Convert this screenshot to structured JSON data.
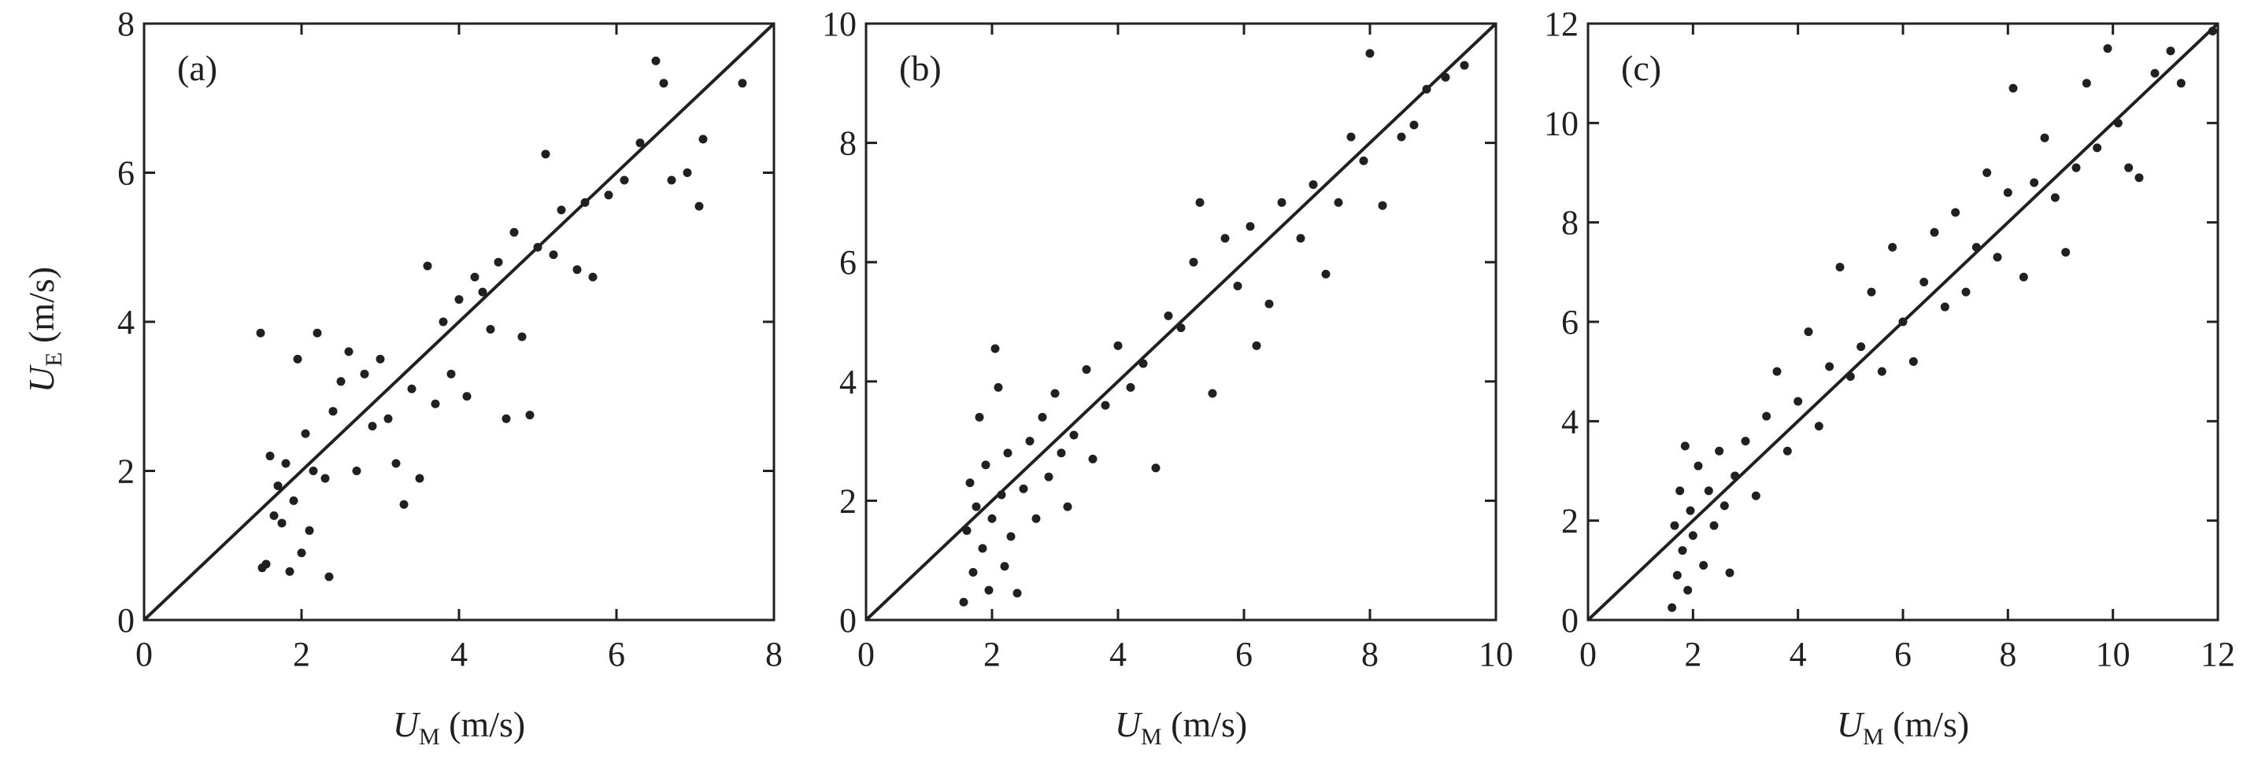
{
  "chart_data": [
    {
      "type": "scatter",
      "panel_label": "(a)",
      "xlabel": {
        "main": "U",
        "sub": "M",
        "unit": " (m/s)"
      },
      "ylabel": {
        "main": "U",
        "sub": "E",
        "unit": " (m/s)"
      },
      "xlim": [
        0,
        8
      ],
      "ylim": [
        0,
        8
      ],
      "xticks": [
        0,
        2,
        4,
        6,
        8
      ],
      "yticks": [
        0,
        2,
        4,
        6,
        8
      ],
      "reference_line": "y = x",
      "grid": false,
      "points": [
        [
          1.48,
          3.85
        ],
        [
          1.5,
          0.7
        ],
        [
          1.55,
          0.75
        ],
        [
          1.6,
          2.2
        ],
        [
          1.65,
          1.4
        ],
        [
          1.7,
          1.8
        ],
        [
          1.75,
          1.3
        ],
        [
          1.8,
          2.1
        ],
        [
          1.85,
          0.65
        ],
        [
          1.9,
          1.6
        ],
        [
          1.95,
          3.5
        ],
        [
          2.0,
          0.9
        ],
        [
          2.05,
          2.5
        ],
        [
          2.1,
          1.2
        ],
        [
          2.15,
          2.0
        ],
        [
          2.2,
          3.85
        ],
        [
          2.3,
          1.9
        ],
        [
          2.35,
          0.58
        ],
        [
          2.4,
          2.8
        ],
        [
          2.5,
          3.2
        ],
        [
          2.6,
          3.6
        ],
        [
          2.7,
          2.0
        ],
        [
          2.8,
          3.3
        ],
        [
          2.9,
          2.6
        ],
        [
          3.0,
          3.5
        ],
        [
          3.1,
          2.7
        ],
        [
          3.2,
          2.1
        ],
        [
          3.3,
          1.55
        ],
        [
          3.4,
          3.1
        ],
        [
          3.5,
          1.9
        ],
        [
          3.6,
          4.75
        ],
        [
          3.7,
          2.9
        ],
        [
          3.8,
          4.0
        ],
        [
          3.9,
          3.3
        ],
        [
          4.0,
          4.3
        ],
        [
          4.1,
          3.0
        ],
        [
          4.2,
          4.6
        ],
        [
          4.3,
          4.4
        ],
        [
          4.4,
          3.9
        ],
        [
          4.5,
          4.8
        ],
        [
          4.6,
          2.7
        ],
        [
          4.7,
          5.2
        ],
        [
          4.8,
          3.8
        ],
        [
          4.9,
          2.75
        ],
        [
          5.0,
          5.0
        ],
        [
          5.1,
          6.25
        ],
        [
          5.2,
          4.9
        ],
        [
          5.3,
          5.5
        ],
        [
          5.5,
          4.7
        ],
        [
          5.6,
          5.6
        ],
        [
          5.7,
          4.6
        ],
        [
          5.9,
          5.7
        ],
        [
          6.1,
          5.9
        ],
        [
          6.3,
          6.4
        ],
        [
          6.5,
          7.5
        ],
        [
          6.6,
          7.2
        ],
        [
          6.7,
          5.9
        ],
        [
          6.9,
          6.0
        ],
        [
          7.05,
          5.55
        ],
        [
          7.1,
          6.45
        ],
        [
          7.6,
          7.2
        ]
      ]
    },
    {
      "type": "scatter",
      "panel_label": "(b)",
      "xlabel": {
        "main": "U",
        "sub": "M",
        "unit": " (m/s)"
      },
      "ylabel": {
        "main": "",
        "sub": "",
        "unit": ""
      },
      "xlim": [
        0,
        10
      ],
      "ylim": [
        0,
        10
      ],
      "xticks": [
        0,
        2,
        4,
        6,
        8,
        10
      ],
      "yticks": [
        0,
        2,
        4,
        6,
        8,
        10
      ],
      "reference_line": "y = x",
      "grid": false,
      "points": [
        [
          1.55,
          0.3
        ],
        [
          1.6,
          1.5
        ],
        [
          1.65,
          2.3
        ],
        [
          1.7,
          0.8
        ],
        [
          1.75,
          1.9
        ],
        [
          1.8,
          3.4
        ],
        [
          1.85,
          1.2
        ],
        [
          1.9,
          2.6
        ],
        [
          1.95,
          0.5
        ],
        [
          2.0,
          1.7
        ],
        [
          2.05,
          4.55
        ],
        [
          2.1,
          3.9
        ],
        [
          2.15,
          2.1
        ],
        [
          2.2,
          0.9
        ],
        [
          2.25,
          2.8
        ],
        [
          2.3,
          1.4
        ],
        [
          2.4,
          0.45
        ],
        [
          2.5,
          2.2
        ],
        [
          2.6,
          3.0
        ],
        [
          2.7,
          1.7
        ],
        [
          2.8,
          3.4
        ],
        [
          2.9,
          2.4
        ],
        [
          3.0,
          3.8
        ],
        [
          3.1,
          2.8
        ],
        [
          3.2,
          1.9
        ],
        [
          3.3,
          3.1
        ],
        [
          3.5,
          4.2
        ],
        [
          3.6,
          2.7
        ],
        [
          3.8,
          3.6
        ],
        [
          4.0,
          4.6
        ],
        [
          4.2,
          3.9
        ],
        [
          4.4,
          4.3
        ],
        [
          4.6,
          2.55
        ],
        [
          4.8,
          5.1
        ],
        [
          5.0,
          4.9
        ],
        [
          5.2,
          6.0
        ],
        [
          5.3,
          7.0
        ],
        [
          5.5,
          3.8
        ],
        [
          5.7,
          6.4
        ],
        [
          5.9,
          5.6
        ],
        [
          6.1,
          6.6
        ],
        [
          6.2,
          4.6
        ],
        [
          6.4,
          5.3
        ],
        [
          6.6,
          7.0
        ],
        [
          6.9,
          6.4
        ],
        [
          7.1,
          7.3
        ],
        [
          7.3,
          5.8
        ],
        [
          7.5,
          7.0
        ],
        [
          7.7,
          8.1
        ],
        [
          7.9,
          7.7
        ],
        [
          8.0,
          9.5
        ],
        [
          8.2,
          6.95
        ],
        [
          8.5,
          8.1
        ],
        [
          8.7,
          8.3
        ],
        [
          8.9,
          8.9
        ],
        [
          9.2,
          9.1
        ],
        [
          9.5,
          9.3
        ]
      ]
    },
    {
      "type": "scatter",
      "panel_label": "(c)",
      "xlabel": {
        "main": "U",
        "sub": "M",
        "unit": " (m/s)"
      },
      "ylabel": {
        "main": "",
        "sub": "",
        "unit": ""
      },
      "xlim": [
        0,
        12
      ],
      "ylim": [
        0,
        12
      ],
      "xticks": [
        0,
        2,
        4,
        6,
        8,
        10,
        12
      ],
      "yticks": [
        0,
        2,
        4,
        6,
        8,
        10,
        12
      ],
      "reference_line": "y = x",
      "grid": false,
      "points": [
        [
          1.6,
          0.25
        ],
        [
          1.65,
          1.9
        ],
        [
          1.7,
          0.9
        ],
        [
          1.75,
          2.6
        ],
        [
          1.8,
          1.4
        ],
        [
          1.85,
          3.5
        ],
        [
          1.9,
          0.6
        ],
        [
          1.95,
          2.2
        ],
        [
          2.0,
          1.7
        ],
        [
          2.1,
          3.1
        ],
        [
          2.2,
          1.1
        ],
        [
          2.3,
          2.6
        ],
        [
          2.4,
          1.9
        ],
        [
          2.5,
          3.4
        ],
        [
          2.6,
          2.3
        ],
        [
          2.7,
          0.95
        ],
        [
          2.8,
          2.9
        ],
        [
          3.0,
          3.6
        ],
        [
          3.2,
          2.5
        ],
        [
          3.4,
          4.1
        ],
        [
          3.6,
          5.0
        ],
        [
          3.8,
          3.4
        ],
        [
          4.0,
          4.4
        ],
        [
          4.2,
          5.8
        ],
        [
          4.4,
          3.9
        ],
        [
          4.6,
          5.1
        ],
        [
          4.8,
          7.1
        ],
        [
          5.0,
          4.9
        ],
        [
          5.2,
          5.5
        ],
        [
          5.4,
          6.6
        ],
        [
          5.6,
          5.0
        ],
        [
          5.8,
          7.5
        ],
        [
          6.0,
          6.0
        ],
        [
          6.2,
          5.2
        ],
        [
          6.4,
          6.8
        ],
        [
          6.6,
          7.8
        ],
        [
          6.8,
          6.3
        ],
        [
          7.0,
          8.2
        ],
        [
          7.2,
          6.6
        ],
        [
          7.4,
          7.5
        ],
        [
          7.6,
          9.0
        ],
        [
          7.8,
          7.3
        ],
        [
          8.0,
          8.6
        ],
        [
          8.1,
          10.7
        ],
        [
          8.3,
          6.9
        ],
        [
          8.5,
          8.8
        ],
        [
          8.7,
          9.7
        ],
        [
          8.9,
          8.5
        ],
        [
          9.1,
          7.4
        ],
        [
          9.3,
          9.1
        ],
        [
          9.5,
          10.8
        ],
        [
          9.7,
          9.5
        ],
        [
          9.9,
          11.5
        ],
        [
          10.1,
          10.0
        ],
        [
          10.3,
          9.1
        ],
        [
          10.5,
          8.9
        ],
        [
          10.8,
          11.0
        ],
        [
          11.1,
          11.45
        ],
        [
          11.3,
          10.8
        ],
        [
          11.9,
          11.85
        ]
      ]
    }
  ]
}
